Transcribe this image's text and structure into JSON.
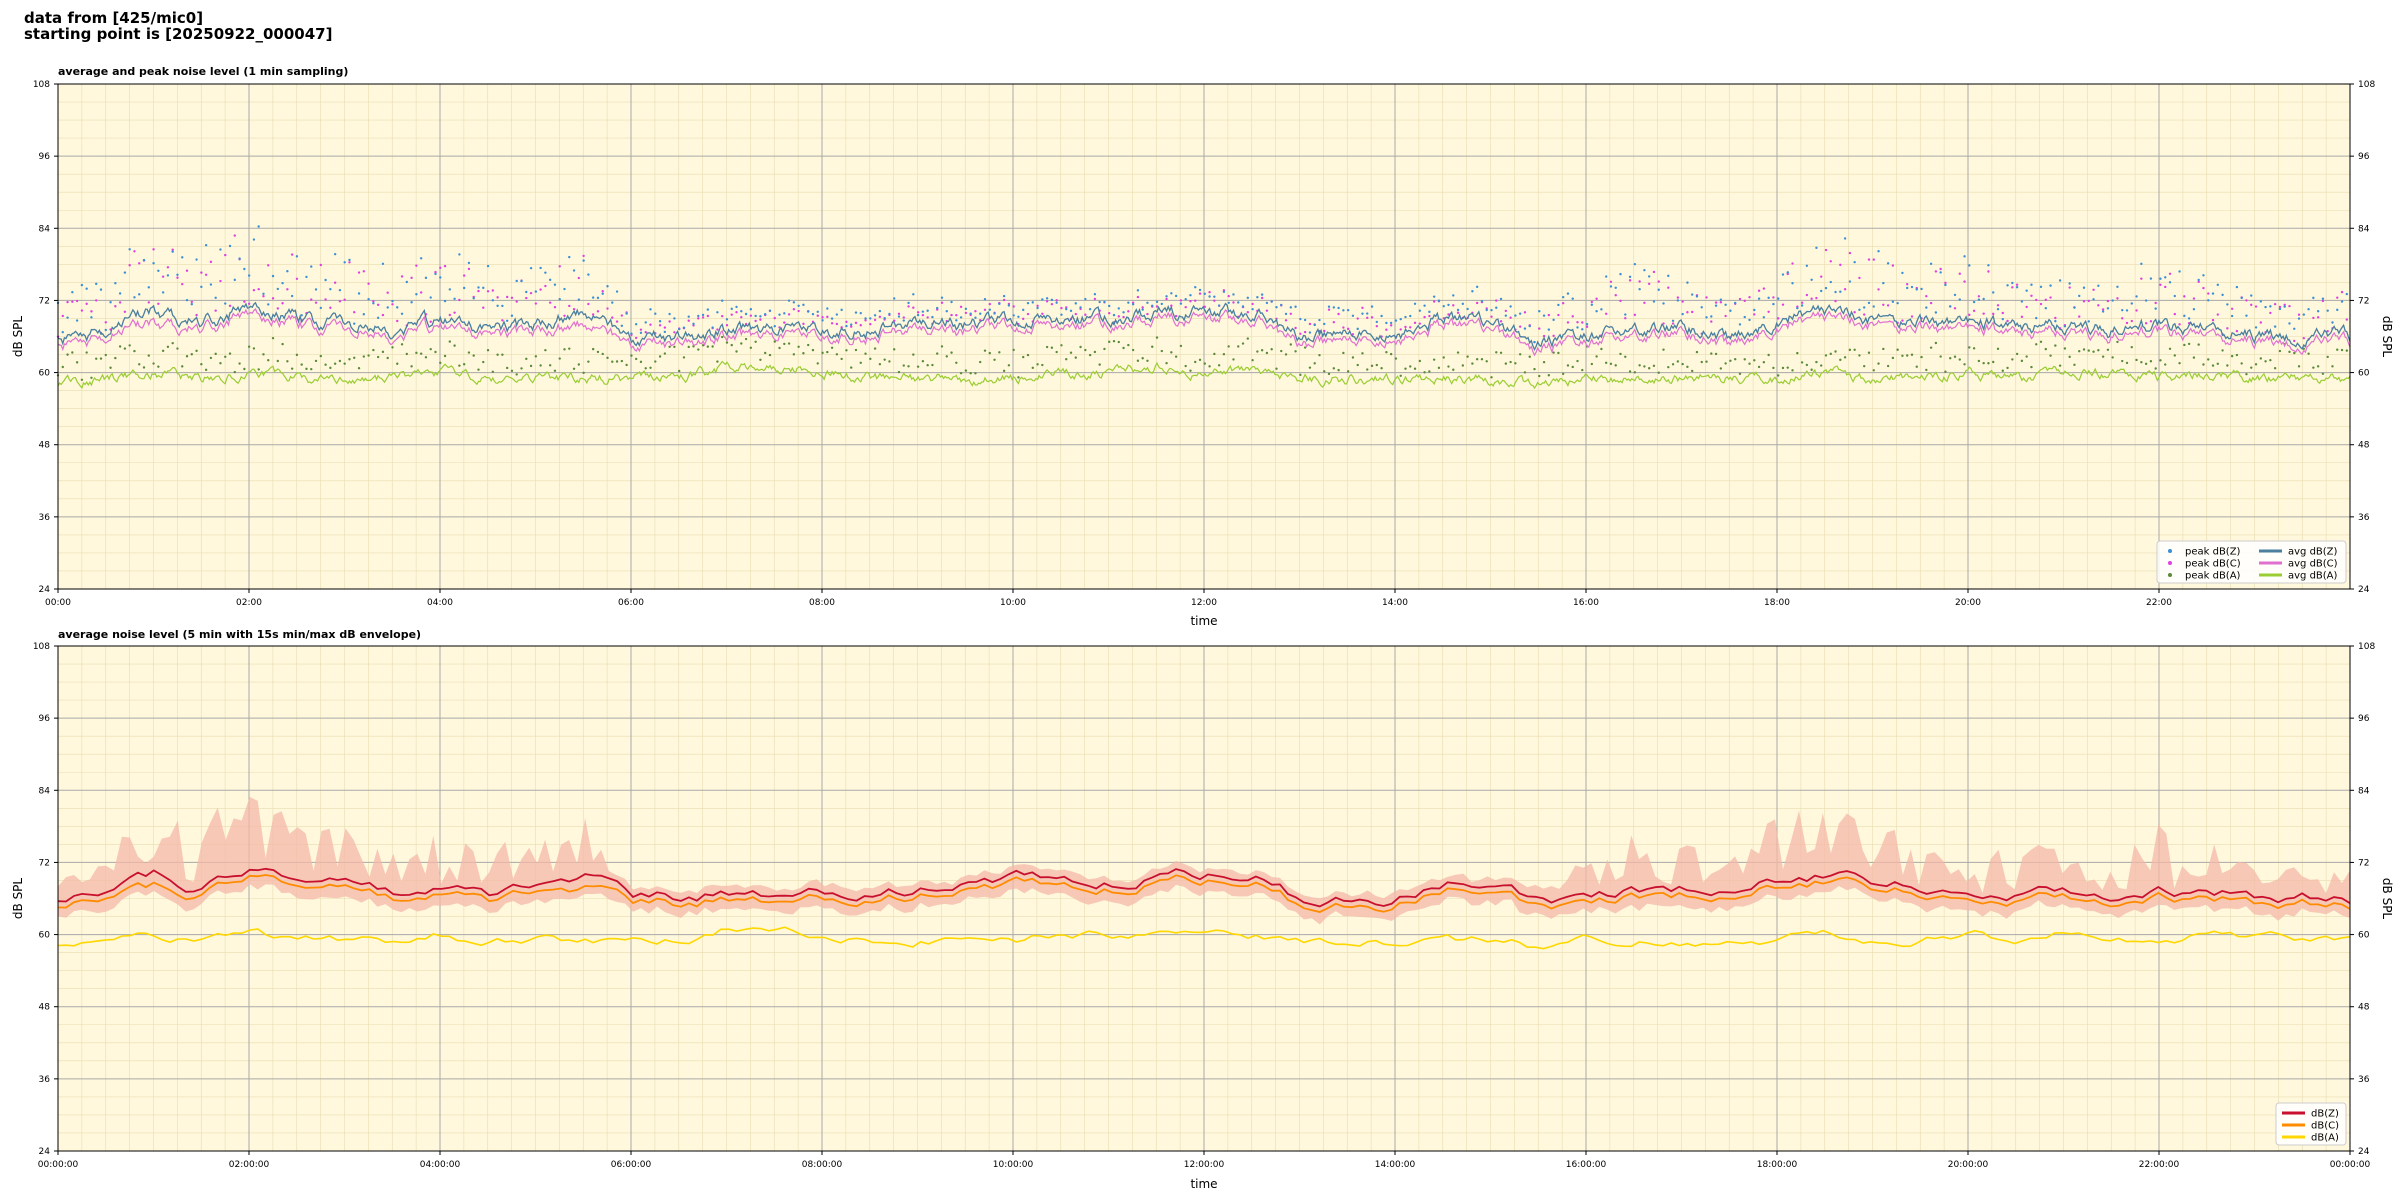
{
  "header": {
    "line1": "data from [425/mic0]",
    "line2": "starting point is [20250922_000047]"
  },
  "chart_data": [
    {
      "type": "scatter",
      "title": "average and peak noise level (1 min sampling)",
      "xlabel": "time",
      "ylabel": "dB SPL",
      "xlim": [
        "00:00",
        "24:00"
      ],
      "ylim": [
        24,
        108
      ],
      "yticks": [
        24,
        36,
        48,
        60,
        72,
        84,
        96,
        108
      ],
      "xtick_labels": [
        "00:00",
        "02:00",
        "04:00",
        "06:00",
        "08:00",
        "10:00",
        "12:00",
        "14:00",
        "16:00",
        "18:00",
        "20:00",
        "22:00"
      ],
      "grid": true,
      "legend_placement": "lower-right",
      "series": [
        {
          "name": "peak dB(Z)",
          "kind": "points",
          "color": "#3a8fd6"
        },
        {
          "name": "peak dB(C)",
          "kind": "points",
          "color": "#e040e0"
        },
        {
          "name": "peak dB(A)",
          "kind": "points",
          "color": "#5a8a3a"
        },
        {
          "name": "avg dB(Z)",
          "kind": "line",
          "color": "#4a7fa0"
        },
        {
          "name": "avg dB(C)",
          "kind": "line",
          "color": "#e070d0"
        },
        {
          "name": "avg dB(A)",
          "kind": "line",
          "color": "#9acd32"
        }
      ],
      "profile_hours": [
        0,
        0.5,
        1,
        1.5,
        2,
        2.5,
        3,
        3.5,
        4,
        4.5,
        5,
        5.5,
        6,
        6.5,
        7,
        7.5,
        8,
        8.5,
        9,
        9.5,
        10,
        10.5,
        11,
        11.5,
        12,
        12.5,
        13,
        13.5,
        14,
        14.5,
        15,
        15.5,
        16,
        16.5,
        17,
        17.5,
        18,
        18.5,
        19,
        19.5,
        20,
        20.5,
        21,
        21.5,
        22,
        22.5,
        23,
        23.5,
        24
      ],
      "avg_dbZ": [
        65,
        67,
        70,
        68,
        71,
        69,
        68,
        67,
        69,
        67,
        68,
        70,
        66,
        66,
        67,
        67,
        67,
        67,
        68,
        68,
        69,
        69,
        69,
        70,
        70,
        70,
        66,
        66,
        66,
        69,
        68,
        65,
        66,
        67,
        67,
        66,
        69,
        70,
        69,
        68,
        69,
        67,
        68,
        67,
        68,
        67,
        66,
        66,
        66
      ],
      "avg_dbC": [
        64,
        66,
        68,
        67,
        70,
        68,
        67,
        66,
        68,
        66,
        67,
        68,
        65,
        65,
        66,
        66,
        66,
        66,
        67,
        67,
        68,
        68,
        68,
        69,
        69,
        69,
        65,
        65,
        65,
        68,
        67,
        64,
        65,
        66,
        66,
        65,
        68,
        69,
        68,
        67,
        68,
        66,
        67,
        66,
        67,
        66,
        65,
        65,
        65
      ],
      "avg_dbA": [
        58,
        59,
        60,
        59,
        60,
        59,
        59,
        59,
        60,
        59,
        59,
        59,
        59,
        59,
        61,
        61,
        60,
        59,
        59,
        59,
        59,
        60,
        60,
        61,
        60,
        60,
        59,
        59,
        59,
        59,
        59,
        58,
        59,
        59,
        59,
        59,
        59,
        60,
        59,
        59,
        60,
        59,
        60,
        60,
        59,
        60,
        59,
        59,
        59
      ],
      "peak_offset_dB": [
        7,
        9,
        12,
        12,
        13,
        11,
        10,
        10,
        11,
        9,
        10,
        11,
        3,
        3,
        3,
        3,
        3,
        3,
        3,
        3,
        3,
        3,
        3,
        3,
        3,
        3,
        4,
        4,
        4,
        3,
        4,
        5,
        7,
        10,
        8,
        6,
        10,
        12,
        10,
        9,
        10,
        7,
        8,
        7,
        10,
        8,
        7,
        6,
        6
      ]
    },
    {
      "type": "area",
      "title": "average noise level (5 min with 15s min/max dB envelope)",
      "xlabel": "time",
      "ylabel": "dB SPL",
      "xlim": [
        "00:00:00",
        "00:00:00"
      ],
      "ylim": [
        24,
        108
      ],
      "yticks": [
        24,
        36,
        48,
        60,
        72,
        84,
        96,
        108
      ],
      "xtick_labels": [
        "00:00:00",
        "02:00:00",
        "04:00:00",
        "06:00:00",
        "08:00:00",
        "10:00:00",
        "12:00:00",
        "14:00:00",
        "16:00:00",
        "18:00:00",
        "20:00:00",
        "22:00:00",
        "00:00:00"
      ],
      "grid": true,
      "legend_placement": "lower-right",
      "series": [
        {
          "name": "dB(Z)",
          "color": "#c8102e"
        },
        {
          "name": "dB(C)",
          "color": "#ff8c00"
        },
        {
          "name": "dB(A)",
          "color": "#ffd700"
        }
      ],
      "envelope_color": "#f4b8a8",
      "envelope_max_offset_dB": [
        3,
        6,
        12,
        10,
        12,
        10,
        8,
        9,
        9,
        7,
        8,
        10,
        1,
        1,
        1,
        1,
        1,
        1,
        1,
        1,
        1,
        1,
        1,
        1,
        1,
        1,
        1,
        1,
        1,
        1,
        1,
        2,
        5,
        10,
        8,
        6,
        10,
        12,
        10,
        8,
        10,
        6,
        7,
        6,
        10,
        8,
        6,
        5,
        5
      ]
    }
  ]
}
